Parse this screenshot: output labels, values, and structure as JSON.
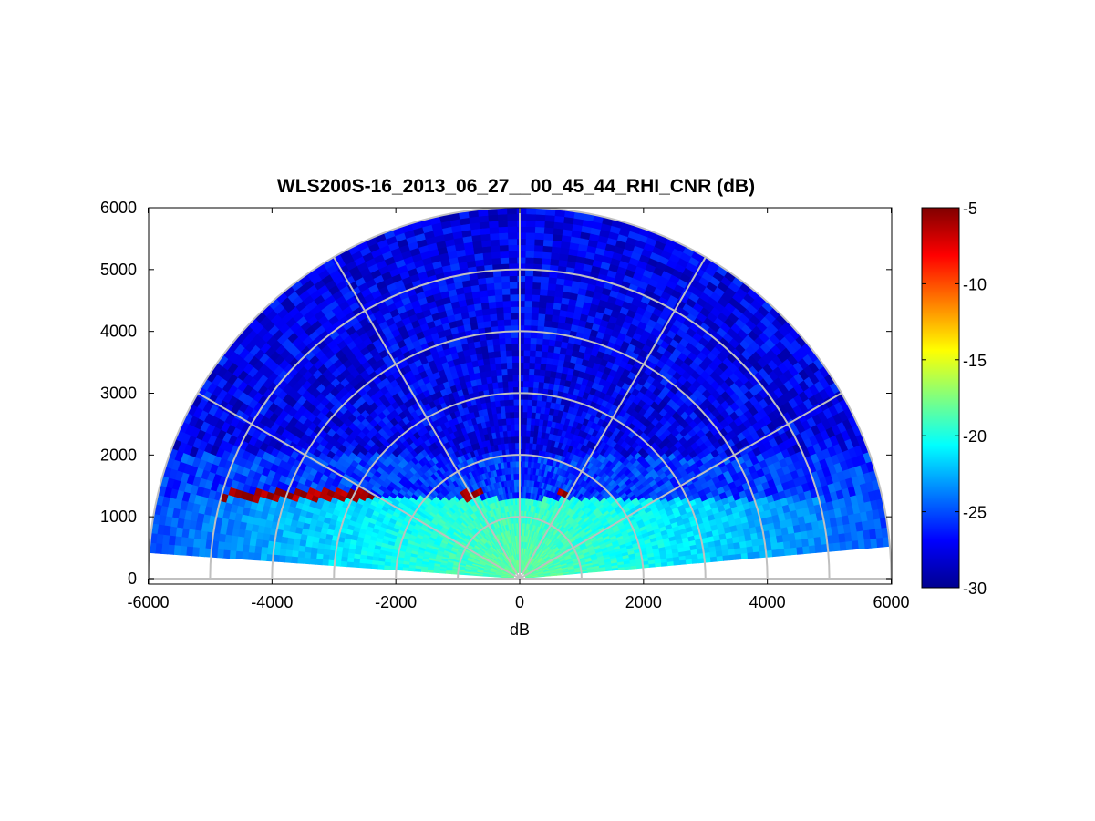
{
  "chart_data": {
    "type": "heatmap",
    "subtype": "polar-rhi-sector",
    "title": "WLS200S-16_2013_06_27__00_45_44_RHI_CNR (dB)",
    "xlabel": "dB",
    "ylabel": "",
    "xlim": [
      -6000,
      6000
    ],
    "ylim": [
      0,
      6000
    ],
    "x_ticks": [
      -6000,
      -4000,
      -2000,
      0,
      2000,
      4000,
      6000
    ],
    "y_ticks": [
      0,
      1000,
      2000,
      3000,
      4000,
      5000,
      6000
    ],
    "range_rings": [
      1000,
      2000,
      3000,
      4000,
      5000,
      6000
    ],
    "angle_spokes_deg": [
      0,
      30,
      60,
      90,
      120,
      150,
      180
    ],
    "colormap": "jet",
    "colorbar": {
      "range": [
        -30,
        -5
      ],
      "ticks": [
        -5,
        -10,
        -15,
        -20,
        -25,
        -30
      ]
    },
    "colors": {
      "grid": "#c0c0c0",
      "jet": [
        "#000080",
        "#0000ff",
        "#00ffff",
        "#ffff00",
        "#ff0000",
        "#800000"
      ]
    }
  }
}
